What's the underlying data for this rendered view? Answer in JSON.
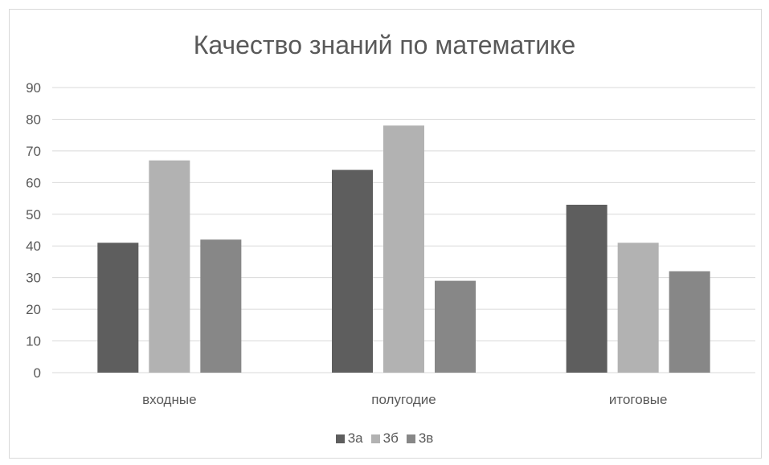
{
  "chart_data": {
    "type": "bar",
    "title": "Качество знаний по математике",
    "categories": [
      "входные",
      "полугодие",
      "итоговые"
    ],
    "series": [
      {
        "name": "3а",
        "values": [
          41,
          64,
          53
        ],
        "color": "#5e5e5e"
      },
      {
        "name": "3б",
        "values": [
          67,
          78,
          41
        ],
        "color": "#b2b2b2"
      },
      {
        "name": "3в",
        "values": [
          42,
          29,
          32
        ],
        "color": "#878787"
      }
    ],
    "ylim": [
      0,
      90
    ],
    "yticks": [
      "0",
      "10",
      "20",
      "30",
      "40",
      "50",
      "60",
      "70",
      "80",
      "90"
    ],
    "grid": true,
    "legend_position": "bottom"
  }
}
